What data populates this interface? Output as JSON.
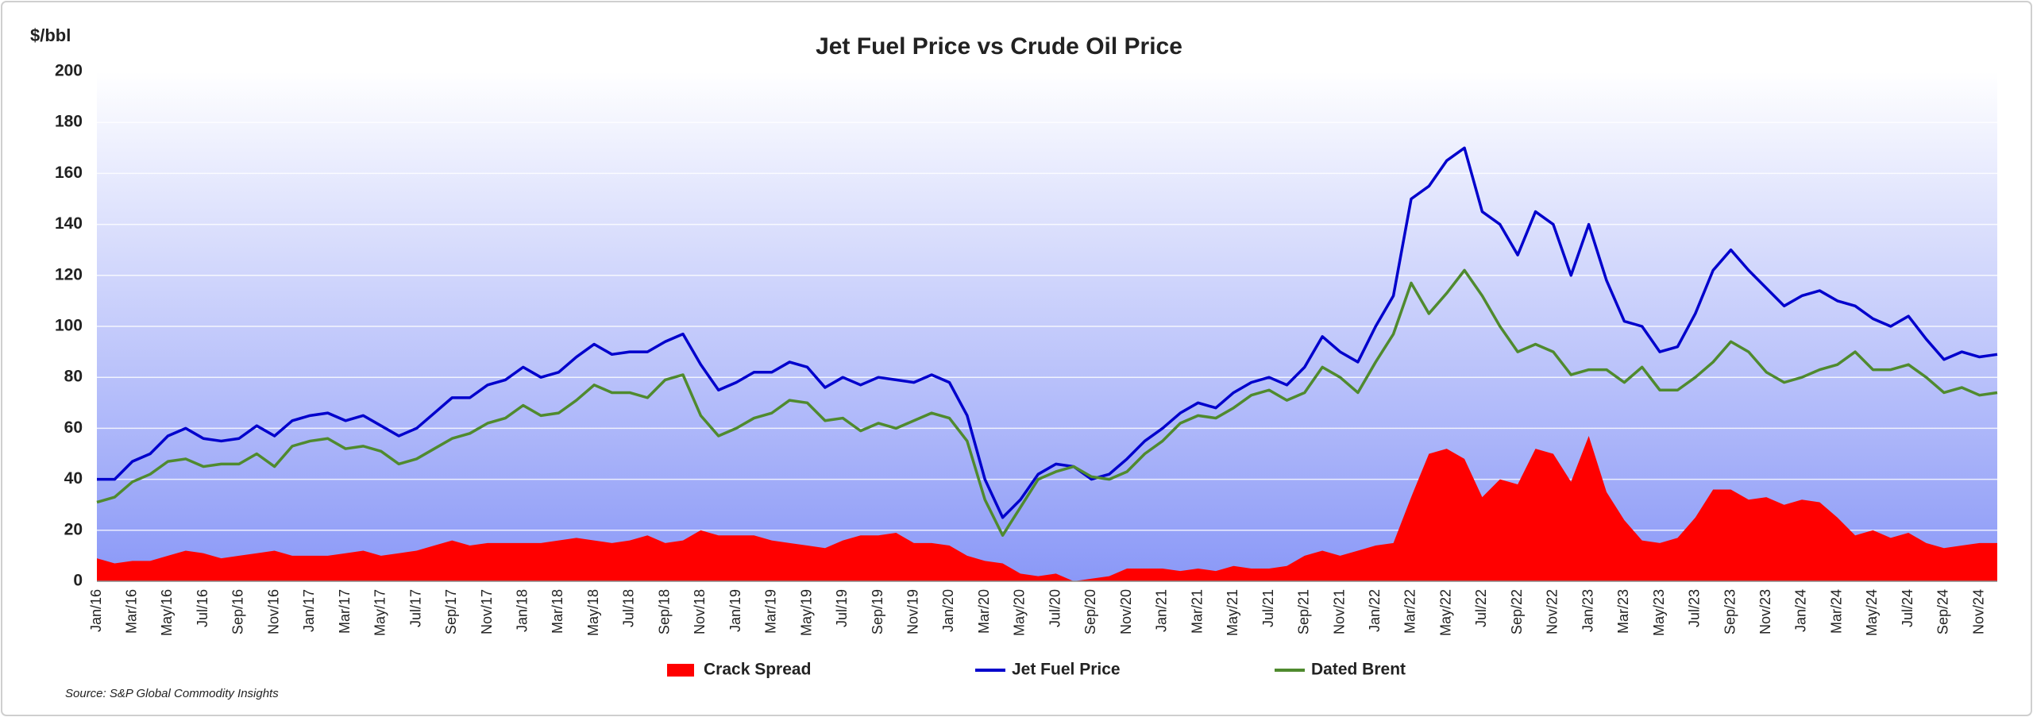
{
  "chart_data": {
    "type": "line",
    "title": "Jet Fuel Price vs Crude Oil Price",
    "y_label": "$/bbl",
    "source": "Source:  S&P Global Commodity Insights",
    "categories": [
      "Jan/16",
      null,
      "Mar/16",
      null,
      "May/16",
      null,
      "Jul/16",
      null,
      "Sep/16",
      null,
      "Nov/16",
      null,
      "Jan/17",
      null,
      "Mar/17",
      null,
      "May/17",
      null,
      "Jul/17",
      null,
      "Sep/17",
      null,
      "Nov/17",
      null,
      "Jan/18",
      null,
      "Mar/18",
      null,
      "May/18",
      null,
      "Jul/18",
      null,
      "Sep/18",
      null,
      "Nov/18",
      null,
      "Jan/19",
      null,
      "Mar/19",
      null,
      "May/19",
      null,
      "Jul/19",
      null,
      "Sep/19",
      null,
      "Nov/19",
      null,
      "Jan/20",
      null,
      "Mar/20",
      null,
      "May/20",
      null,
      "Jul/20",
      null,
      "Sep/20",
      null,
      "Nov/20",
      null,
      "Jan/21",
      null,
      "Mar/21",
      null,
      "May/21",
      null,
      "Jul/21",
      null,
      "Sep/21",
      null,
      "Nov/21",
      null,
      "Jan/22",
      null,
      "Mar/22",
      null,
      "May/22",
      null,
      "Jul/22",
      null,
      "Sep/22",
      null,
      "Nov/22",
      null,
      "Jan/23",
      null,
      "Mar/23",
      null,
      "May/23",
      null,
      "Jul/23",
      null,
      "Sep/23",
      null,
      "Nov/23",
      null,
      "Jan/24",
      null,
      "Mar/24",
      null,
      "May/24",
      null,
      "Jul/24",
      null,
      "Sep/24",
      null,
      "Nov/24",
      null
    ],
    "series": [
      {
        "name": "Crack Spread",
        "type": "area",
        "color": "#ff0000",
        "values": [
          9,
          7,
          8,
          8,
          10,
          12,
          11,
          9,
          10,
          11,
          12,
          10,
          10,
          10,
          11,
          12,
          10,
          11,
          12,
          14,
          16,
          14,
          15,
          15,
          15,
          15,
          16,
          17,
          16,
          15,
          16,
          18,
          15,
          16,
          20,
          18,
          18,
          18,
          16,
          15,
          14,
          13,
          16,
          18,
          18,
          19,
          15,
          15,
          14,
          10,
          8,
          7,
          3,
          2,
          3,
          0,
          1,
          2,
          5,
          5,
          5,
          4,
          5,
          4,
          6,
          5,
          5,
          6,
          10,
          12,
          10,
          12,
          14,
          15,
          33,
          50,
          52,
          48,
          33,
          40,
          38,
          52,
          50,
          39,
          57,
          35,
          24,
          16,
          15,
          17,
          25,
          36,
          36,
          32,
          33,
          30,
          32,
          31,
          25,
          18,
          20,
          17,
          19,
          15,
          13,
          14,
          15,
          15
        ]
      },
      {
        "name": "Jet Fuel Price",
        "type": "line",
        "color": "#0000cc",
        "values": [
          40,
          40,
          47,
          50,
          57,
          60,
          56,
          55,
          56,
          61,
          57,
          63,
          65,
          66,
          63,
          65,
          61,
          57,
          60,
          66,
          72,
          72,
          77,
          79,
          84,
          80,
          82,
          88,
          93,
          89,
          90,
          90,
          94,
          97,
          85,
          75,
          78,
          82,
          82,
          86,
          84,
          76,
          80,
          77,
          80,
          79,
          78,
          81,
          78,
          65,
          40,
          25,
          32,
          42,
          46,
          45,
          40,
          42,
          48,
          55,
          60,
          66,
          70,
          68,
          74,
          78,
          80,
          77,
          84,
          96,
          90,
          86,
          100,
          112,
          150,
          155,
          165,
          170,
          145,
          140,
          128,
          145,
          140,
          120,
          140,
          118,
          102,
          100,
          90,
          92,
          105,
          122,
          130,
          122,
          115,
          108,
          112,
          114,
          110,
          108,
          103,
          100,
          104,
          95,
          87,
          90,
          88,
          89
        ]
      },
      {
        "name": "Dated Brent",
        "type": "line",
        "color": "#4f8a2e",
        "values": [
          31,
          33,
          39,
          42,
          47,
          48,
          45,
          46,
          46,
          50,
          45,
          53,
          55,
          56,
          52,
          53,
          51,
          46,
          48,
          52,
          56,
          58,
          62,
          64,
          69,
          65,
          66,
          71,
          77,
          74,
          74,
          72,
          79,
          81,
          65,
          57,
          60,
          64,
          66,
          71,
          70,
          63,
          64,
          59,
          62,
          60,
          63,
          66,
          64,
          55,
          32,
          18,
          29,
          40,
          43,
          45,
          41,
          40,
          43,
          50,
          55,
          62,
          65,
          64,
          68,
          73,
          75,
          71,
          74,
          84,
          80,
          74,
          86,
          97,
          117,
          105,
          113,
          122,
          112,
          100,
          90,
          93,
          90,
          81,
          83,
          83,
          78,
          84,
          75,
          75,
          80,
          86,
          94,
          90,
          82,
          78,
          80,
          83,
          85,
          90,
          83,
          83,
          85,
          80,
          74,
          76,
          73,
          74
        ]
      }
    ],
    "ylim": [
      0,
      200
    ],
    "yticks": [
      0,
      20,
      40,
      60,
      80,
      100,
      120,
      140,
      160,
      180,
      200
    ],
    "grid": true
  }
}
